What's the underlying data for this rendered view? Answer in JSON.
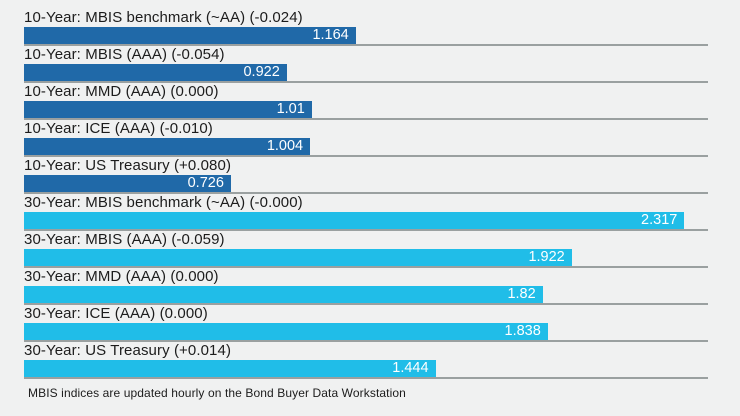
{
  "page": {
    "background_color": "#f0f1f1",
    "gridline_color": "#9aa0a0"
  },
  "chart_data": {
    "type": "bar",
    "orientation": "horizontal",
    "title": "",
    "xlabel": "",
    "ylabel": "",
    "axis_max": 2.4,
    "grid": true,
    "value_label_color": "#ffffff",
    "bar_colors": {
      "10-Year": "#2069a8",
      "30-Year": "#20bde8"
    },
    "bars": [
      {
        "label": "10-Year: MBIS benchmark (~AA) (-0.024)",
        "value": 1.164,
        "display_value": "1.164",
        "group": "10-Year"
      },
      {
        "label": "10-Year: MBIS (AAA) (-0.054)",
        "value": 0.922,
        "display_value": "0.922",
        "group": "10-Year"
      },
      {
        "label": "10-Year: MMD (AAA) (0.000)",
        "value": 1.01,
        "display_value": "1.01",
        "group": "10-Year"
      },
      {
        "label": "10-Year: ICE (AAA) (-0.010)",
        "value": 1.004,
        "display_value": "1.004",
        "group": "10-Year"
      },
      {
        "label": "10-Year: US Treasury (+0.080)",
        "value": 0.726,
        "display_value": "0.726",
        "group": "10-Year"
      },
      {
        "label": "30-Year: MBIS benchmark (~AA) (-0.000)",
        "value": 2.317,
        "display_value": "2.317",
        "group": "30-Year"
      },
      {
        "label": "30-Year: MBIS (AAA) (-0.059)",
        "value": 1.922,
        "display_value": "1.922",
        "group": "30-Year"
      },
      {
        "label": "30-Year: MMD (AAA) (0.000)",
        "value": 1.82,
        "display_value": "1.82",
        "group": "30-Year"
      },
      {
        "label": "30-Year: ICE (AAA) (0.000)",
        "value": 1.838,
        "display_value": "1.838",
        "group": "30-Year"
      },
      {
        "label": "30-Year: US Treasury (+0.014)",
        "value": 1.444,
        "display_value": "1.444",
        "group": "30-Year"
      }
    ]
  },
  "footer": {
    "note": "MBIS indices are updated hourly on the Bond Buyer Data Workstation"
  }
}
